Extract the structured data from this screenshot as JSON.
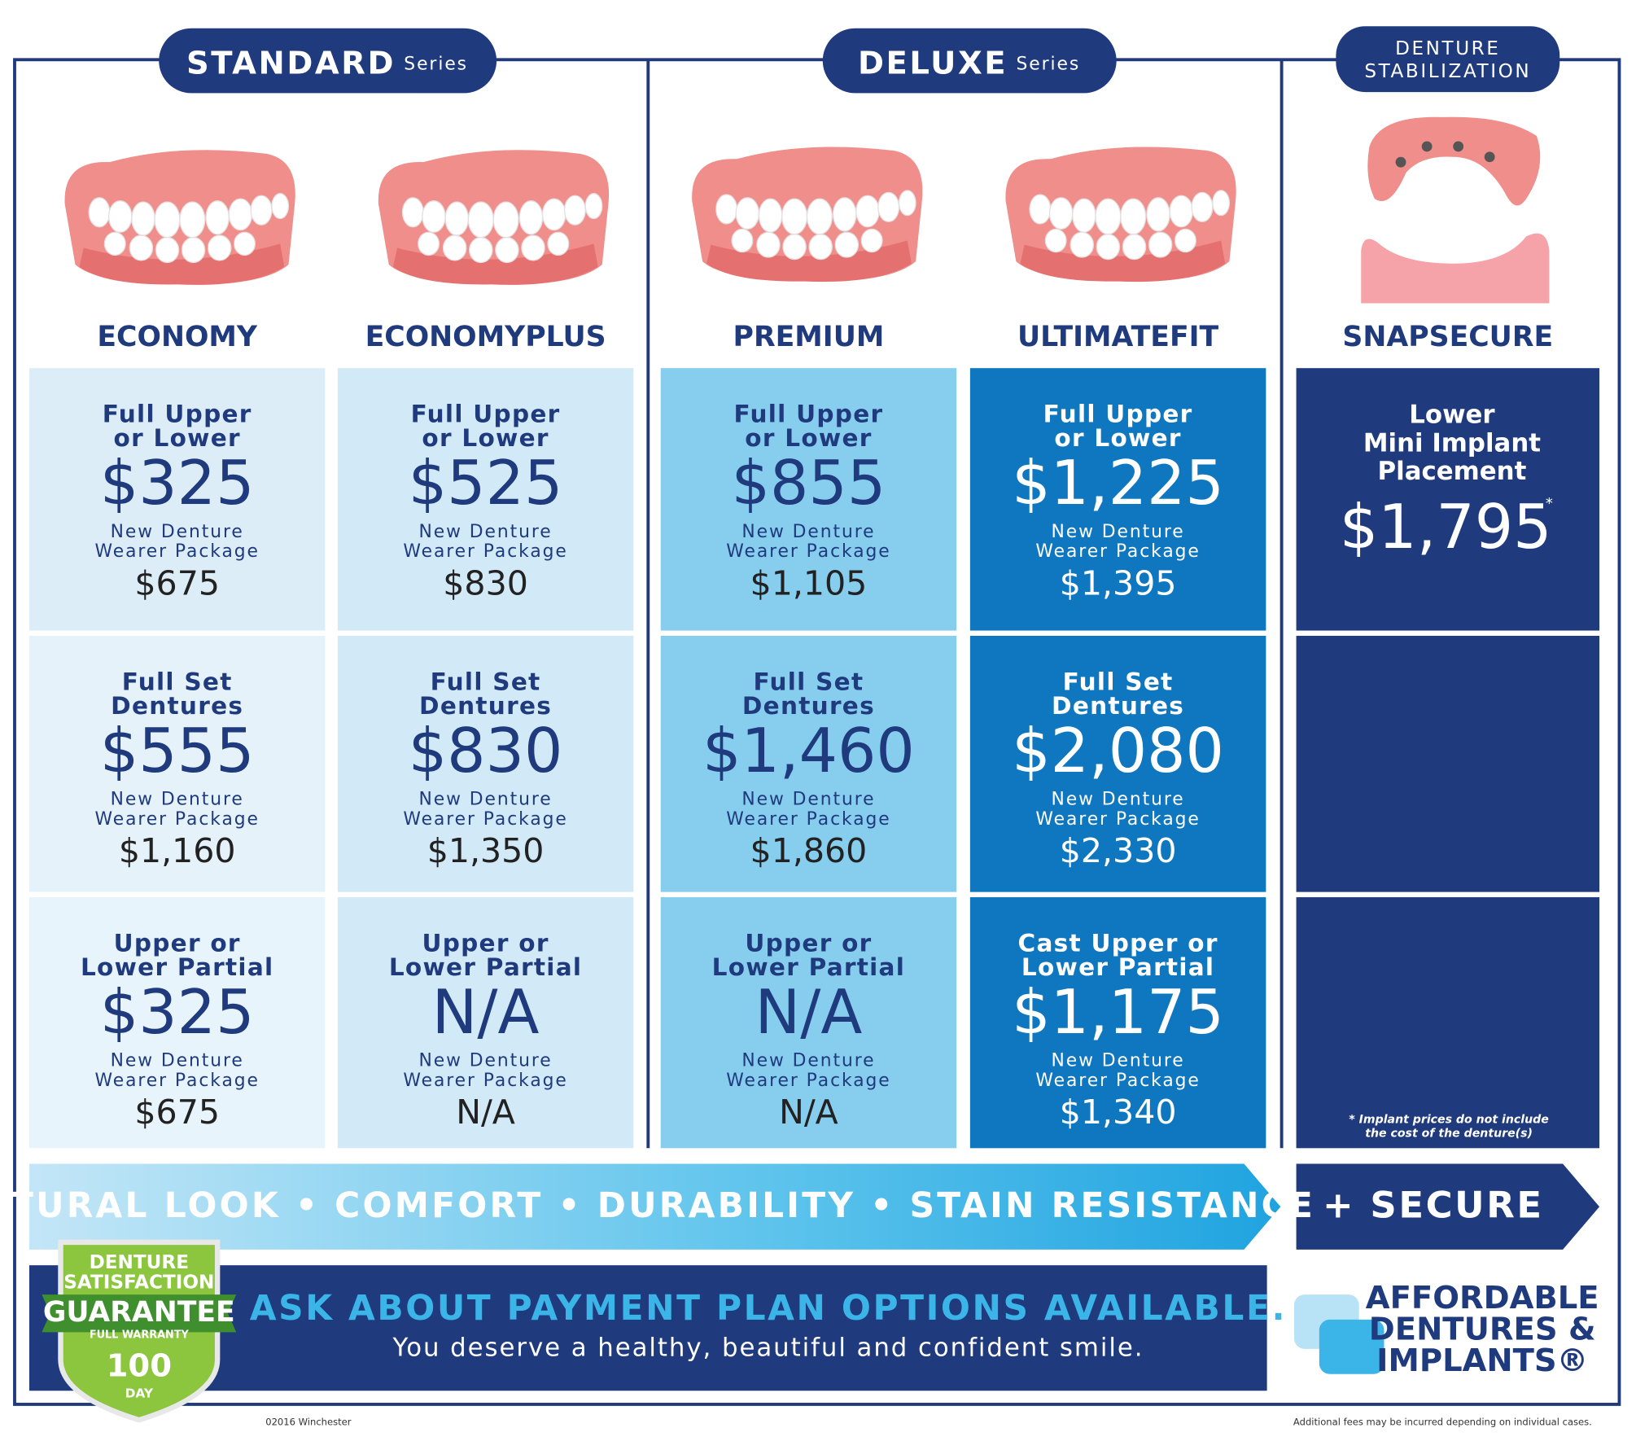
{
  "header": {
    "series": [
      {
        "label": "STANDARD",
        "suffix": "Series"
      },
      {
        "label": "DELUXE",
        "suffix": "Series"
      },
      {
        "label": [
          "DENTURE",
          "STABILIZATION"
        ]
      }
    ]
  },
  "products": [
    {
      "name": "ECONOMY",
      "cells": [
        {
          "title": [
            "Full Upper",
            "or Lower"
          ],
          "price": "$325",
          "package": [
            "New Denture",
            "Wearer Package"
          ],
          "package_price": "$675"
        },
        {
          "title": [
            "Full Set",
            "Dentures"
          ],
          "price": "$555",
          "package": [
            "New Denture",
            "Wearer Package"
          ],
          "package_price": "$1,160"
        },
        {
          "title": [
            "Upper or",
            "Lower Partial"
          ],
          "price": "$325",
          "package": [
            "New Denture",
            "Wearer Package"
          ],
          "package_price": "$675"
        }
      ]
    },
    {
      "name": "ECONOMYPLUS",
      "cells": [
        {
          "title": [
            "Full Upper",
            "or Lower"
          ],
          "price": "$525",
          "package": [
            "New Denture",
            "Wearer Package"
          ],
          "package_price": "$830"
        },
        {
          "title": [
            "Full Set",
            "Dentures"
          ],
          "price": "$830",
          "package": [
            "New Denture",
            "Wearer Package"
          ],
          "package_price": "$1,350"
        },
        {
          "title": [
            "Upper or",
            "Lower Partial"
          ],
          "price": "N/A",
          "package": [
            "New Denture",
            "Wearer Package"
          ],
          "package_price": "N/A"
        }
      ]
    },
    {
      "name": "PREMIUM",
      "cells": [
        {
          "title": [
            "Full Upper",
            "or Lower"
          ],
          "price": "$855",
          "package": [
            "New Denture",
            "Wearer Package"
          ],
          "package_price": "$1,105"
        },
        {
          "title": [
            "Full Set",
            "Dentures"
          ],
          "price": "$1,460",
          "package": [
            "New Denture",
            "Wearer Package"
          ],
          "package_price": "$1,860"
        },
        {
          "title": [
            "Upper or",
            "Lower Partial"
          ],
          "price": "N/A",
          "package": [
            "New Denture",
            "Wearer Package"
          ],
          "package_price": "N/A"
        }
      ]
    },
    {
      "name": "ULTIMATEFIT",
      "cells": [
        {
          "title": [
            "Full Upper",
            "or Lower"
          ],
          "price": "$1,225",
          "package": [
            "New Denture",
            "Wearer Package"
          ],
          "package_price": "$1,395"
        },
        {
          "title": [
            "Full Set",
            "Dentures"
          ],
          "price": "$2,080",
          "package": [
            "New Denture",
            "Wearer Package"
          ],
          "package_price": "$2,330"
        },
        {
          "title": [
            "Cast Upper or",
            "Lower Partial"
          ],
          "price": "$1,175",
          "package": [
            "New Denture",
            "Wearer Package"
          ],
          "package_price": "$1,340"
        }
      ]
    }
  ],
  "snapsecure": {
    "name": "SNAPSECURE",
    "title": [
      "Lower",
      "Mini Implant",
      "Placement"
    ],
    "price": "$1,795",
    "asterisk": "*",
    "note": [
      "* Implant prices do not include",
      "the cost of the denture(s)"
    ]
  },
  "banner": {
    "benefits": "NATURAL LOOK • COMFORT • DURABILITY • STAIN RESISTANCE",
    "secure": "+ SECURE"
  },
  "guarantee": {
    "lines": [
      "DENTURE",
      "SATISFACTION"
    ],
    "headline": "GUARANTEE",
    "warranty": "FULL WARRANTY",
    "days": "100",
    "unit": "DAY"
  },
  "payment": {
    "headline": "ASK ABOUT PAYMENT PLAN OPTIONS AVAILABLE.",
    "subline": "You deserve a healthy, beautiful and confident smile."
  },
  "logo": {
    "lines": [
      "AFFORDABLE",
      "DENTURES &",
      "IMPLANTS®"
    ]
  },
  "footer": {
    "left": "02016 Winchester",
    "right": "Additional fees may be incurred depending on individual cases."
  }
}
